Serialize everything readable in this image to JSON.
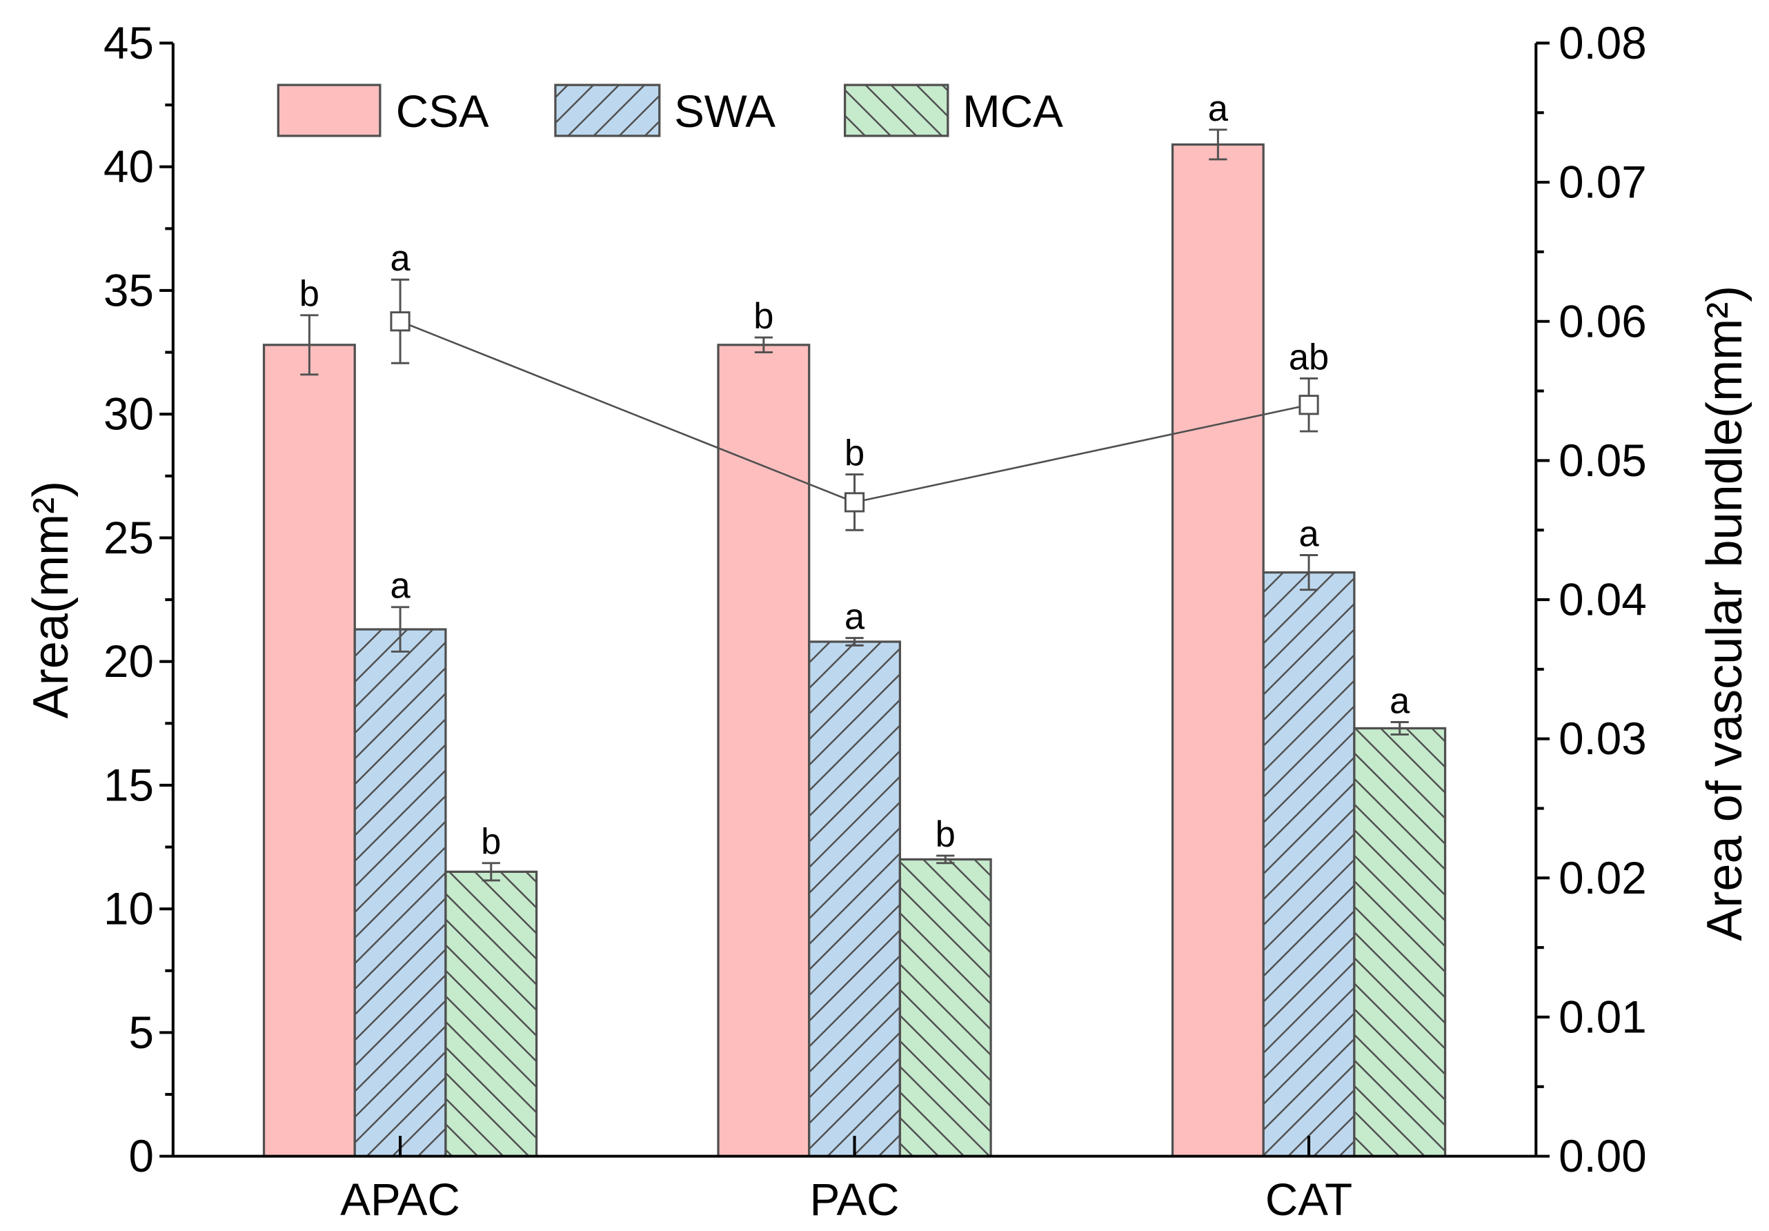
{
  "chart_data": {
    "type": "bar",
    "categories": [
      "APAC",
      "PAC",
      "CAT"
    ],
    "ylabel": "Area(mm²)",
    "y2label": "Area of vascular bundle(mm²)",
    "ylim": [
      0,
      45
    ],
    "y2lim": [
      0,
      0.08
    ],
    "yticks": [
      0,
      5,
      10,
      15,
      20,
      25,
      30,
      35,
      40,
      45
    ],
    "y2ticks": [
      "0.00",
      "0.01",
      "0.02",
      "0.03",
      "0.04",
      "0.05",
      "0.06",
      "0.07",
      "0.08"
    ],
    "series": [
      {
        "name": "CSA",
        "type": "bar",
        "color": "#ffbebe",
        "values": [
          32.8,
          32.8,
          40.9
        ],
        "errors": [
          1.2,
          0.3,
          0.6
        ],
        "letters": [
          "b",
          "b",
          "a"
        ]
      },
      {
        "name": "SWA",
        "type": "bar",
        "color": "#bdd8ee",
        "values": [
          21.3,
          20.8,
          23.6
        ],
        "errors": [
          0.9,
          0.15,
          0.7
        ],
        "letters": [
          "a",
          "a",
          "a"
        ]
      },
      {
        "name": "MCA",
        "type": "bar",
        "color": "#c6eacc",
        "values": [
          11.5,
          12.0,
          17.3
        ],
        "errors": [
          0.35,
          0.15,
          0.25
        ],
        "letters": [
          "b",
          "b",
          "a"
        ]
      },
      {
        "type": "line",
        "color": "#505050",
        "values": [
          0.06,
          0.047,
          0.054
        ],
        "errors": [
          0.003,
          0.002,
          0.0019
        ],
        "letters": [
          "a",
          "b",
          "ab"
        ]
      }
    ]
  }
}
